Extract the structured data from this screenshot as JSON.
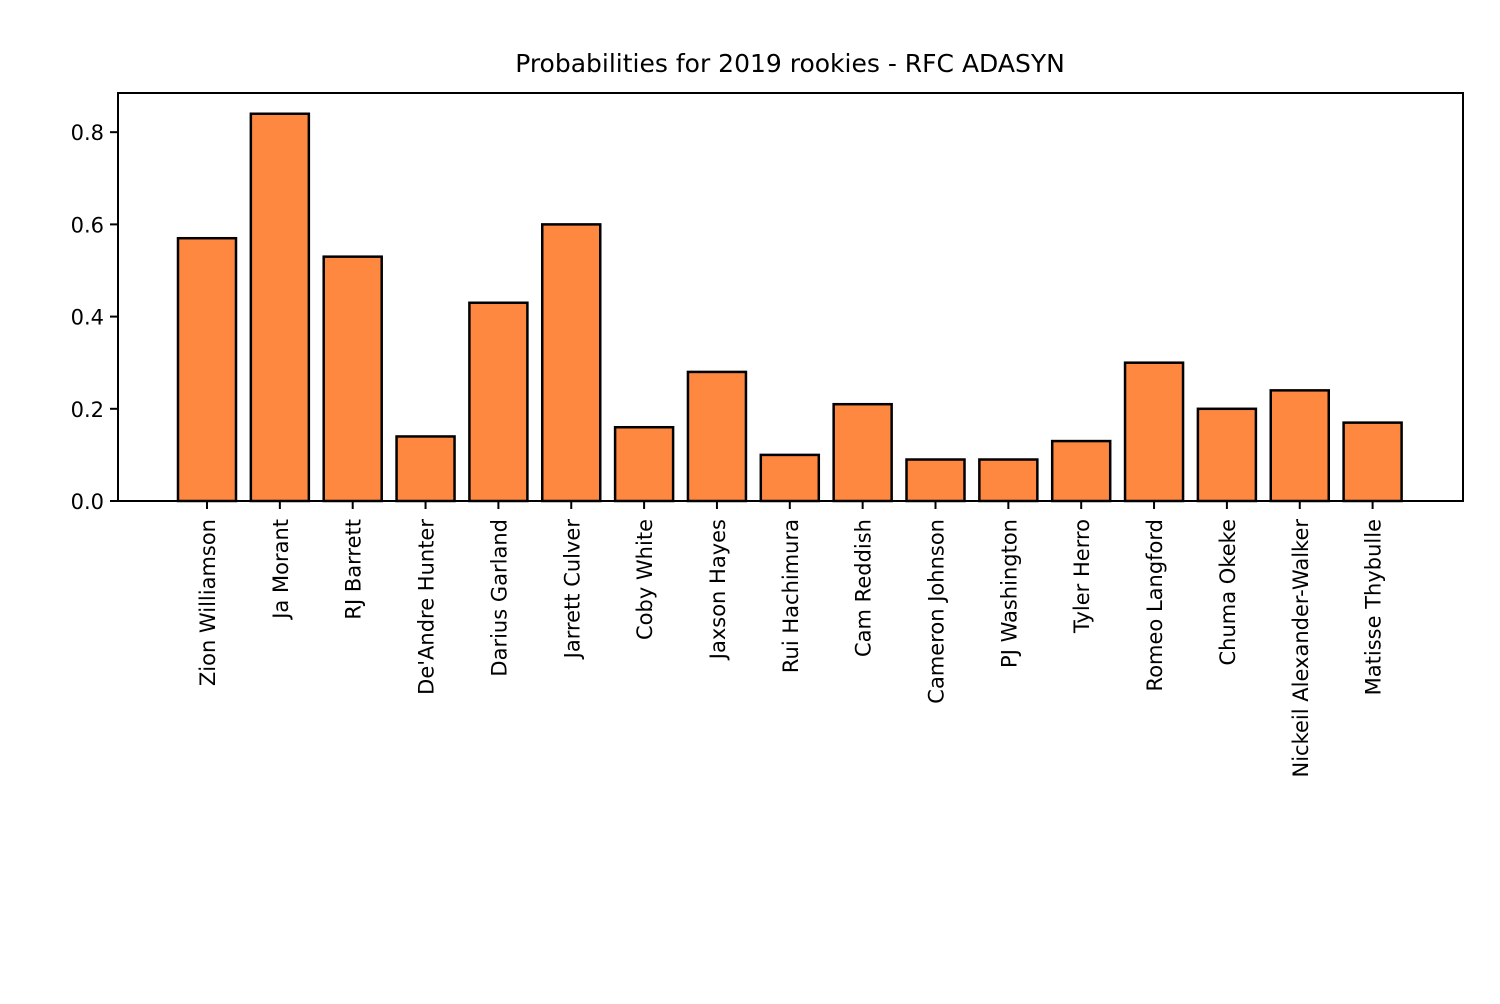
{
  "chart_data": {
    "type": "bar",
    "title": "Probabilities for 2019 rookies - RFC ADASYN",
    "xlabel": "",
    "ylabel": "",
    "categories": [
      "Zion Williamson",
      "Ja Morant",
      "RJ Barrett",
      "De'Andre Hunter",
      "Darius Garland",
      "Jarrett Culver",
      "Coby White",
      "Jaxson Hayes",
      "Rui Hachimura",
      "Cam Reddish",
      "Cameron Johnson",
      "PJ Washington",
      "Tyler Herro",
      "Romeo Langford",
      "Chuma Okeke",
      "Nickeil Alexander-Walker",
      "Matisse Thybulle"
    ],
    "values": [
      0.57,
      0.84,
      0.53,
      0.14,
      0.43,
      0.6,
      0.16,
      0.28,
      0.1,
      0.21,
      0.09,
      0.09,
      0.13,
      0.3,
      0.2,
      0.24,
      0.17
    ],
    "ylim": [
      0,
      0.885
    ],
    "yticks": [
      0.0,
      0.2,
      0.4,
      0.6,
      0.8
    ],
    "ytick_labels": [
      "0.0",
      "0.2",
      "0.4",
      "0.6",
      "0.8"
    ],
    "bar_color": "#ff8841",
    "edge_color": "#000000",
    "grid": false,
    "legend": "none"
  }
}
